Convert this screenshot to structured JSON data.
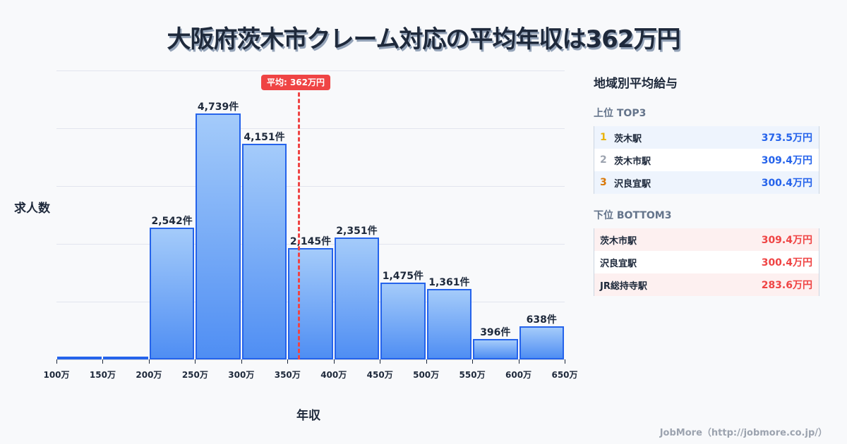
{
  "title": "大阪府茨木市クレーム対応の平均年収は362万円",
  "chart_data": {
    "type": "bar",
    "title": "大阪府茨木市クレーム対応の平均年収は362万円",
    "xlabel": "年収",
    "ylabel": "求人数",
    "categories": [
      "100-150万",
      "150-200万",
      "200-250万",
      "250-300万",
      "300-350万",
      "350-400万",
      "400-450万",
      "450-500万",
      "500-550万",
      "550-600万",
      "600-650万"
    ],
    "values": [
      20,
      60,
      2542,
      4739,
      4151,
      2145,
      2351,
      1475,
      1361,
      396,
      638
    ],
    "value_labels": [
      "",
      "",
      "2,542件",
      "4,739件",
      "4,151件",
      "2,145件",
      "2,351件",
      "1,475件",
      "1,361件",
      "396件",
      "638件"
    ],
    "x_ticks": [
      "100万",
      "150万",
      "200万",
      "250万",
      "300万",
      "350万",
      "400万",
      "450万",
      "500万",
      "550万",
      "600万",
      "650万"
    ],
    "x_range": [
      100,
      650
    ],
    "ylim": [
      0,
      5570
    ],
    "grid": true,
    "average": {
      "value": 362,
      "label": "平均: 362万円",
      "color": "#ef4444"
    },
    "bar_color": "#2563eb"
  },
  "panel": {
    "title": "地域別平均給与",
    "top": {
      "heading": "上位 TOP3",
      "items": [
        {
          "rank": "1",
          "name": "茨木駅",
          "value": "373.5万円",
          "rank_color": "#eab308"
        },
        {
          "rank": "2",
          "name": "茨木市駅",
          "value": "309.4万円",
          "rank_color": "#9ca3af"
        },
        {
          "rank": "3",
          "name": "沢良宜駅",
          "value": "300.4万円",
          "rank_color": "#d97706"
        }
      ]
    },
    "bottom": {
      "heading": "下位 BOTTOM3",
      "items": [
        {
          "name": "茨木市駅",
          "value": "309.4万円"
        },
        {
          "name": "沢良宜駅",
          "value": "300.4万円"
        },
        {
          "name": "JR総持寺駅",
          "value": "283.6万円"
        }
      ]
    }
  },
  "footer": "JobMore（http://jobmore.co.jp/）"
}
